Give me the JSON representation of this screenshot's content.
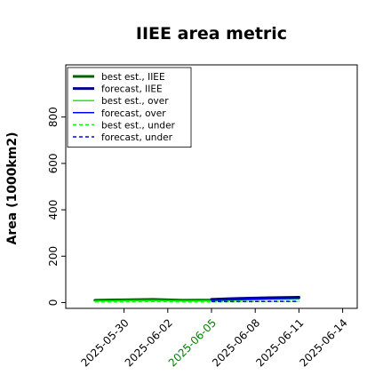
{
  "chart_data": {
    "type": "line",
    "title": "IIEE area metric",
    "xlabel": "",
    "ylabel": "Area (1000km2)",
    "x": [
      "2025-05-28",
      "2025-05-30",
      "2025-06-01",
      "2025-06-03",
      "2025-06-05",
      "2025-06-07",
      "2025-06-09",
      "2025-06-11"
    ],
    "xticks": [
      "2025-05-30",
      "2025-06-02",
      "2025-06-05",
      "2025-06-08",
      "2025-06-11",
      "2025-06-14"
    ],
    "xtick_colors": [
      "#000000",
      "#000000",
      "#008000",
      "#000000",
      "#000000",
      "#000000"
    ],
    "xlim": [
      "2025-05-26",
      "2025-06-15"
    ],
    "yticks": [
      0,
      200,
      400,
      600,
      800
    ],
    "ylim": [
      -25,
      1025
    ],
    "grid": false,
    "legend_position": "top-left",
    "series": [
      {
        "name": "best est., IIEE",
        "color": "#006400",
        "style": "solid",
        "width": 3,
        "values": [
          10,
          12,
          14,
          10,
          11,
          16,
          19,
          20
        ]
      },
      {
        "name": "forecast, IIEE",
        "color": "#00008b",
        "style": "solid",
        "width": 3,
        "values": [
          null,
          null,
          null,
          null,
          14,
          18,
          21,
          23
        ]
      },
      {
        "name": "best est., over",
        "color": "#00ff00",
        "style": "solid",
        "width": 1.5,
        "values": [
          6,
          8,
          9,
          7,
          8,
          11,
          14,
          15
        ]
      },
      {
        "name": "forecast, over",
        "color": "#0000ff",
        "style": "solid",
        "width": 1.5,
        "values": [
          null,
          null,
          null,
          null,
          10,
          13,
          16,
          18
        ]
      },
      {
        "name": "best est., under",
        "color": "#00ff00",
        "style": "dashed",
        "width": 1.5,
        "values": [
          3,
          3,
          4,
          3,
          3,
          4,
          4,
          4
        ]
      },
      {
        "name": "forecast, under",
        "color": "#0000ff",
        "style": "dashed",
        "width": 1.5,
        "values": [
          null,
          null,
          null,
          null,
          4,
          4,
          5,
          5
        ]
      }
    ]
  }
}
